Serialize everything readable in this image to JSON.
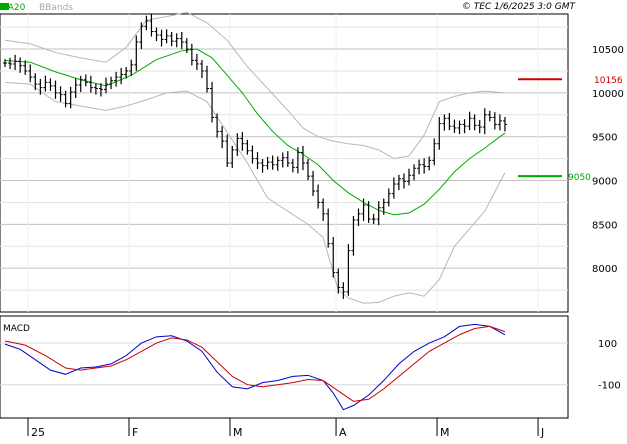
{
  "header": {
    "ma_label": "MA20",
    "bb_label": "BBands",
    "copyright": "© TEC 1/6/2025 3:0 GMT"
  },
  "macd_label": "MACD",
  "colors": {
    "background": "#ffffff",
    "grid": "#c0c0c0",
    "price_bars": "#000000",
    "ma20": "#00aa00",
    "bbands": "#b8b8b8",
    "resistance": "#cc0000",
    "support": "#00aa00",
    "macd_line": "#0000cc",
    "signal_line": "#cc0000"
  },
  "chart_data": [
    {
      "type": "ohlc",
      "title": "",
      "x_labels": [
        "25",
        "F",
        "M",
        "A",
        "M",
        "J"
      ],
      "x_label_days": [
        0,
        20,
        40,
        61,
        81,
        101
      ],
      "ylim": [
        7500,
        10900
      ],
      "y_ticks": [
        8000,
        8500,
        9000,
        9500,
        10000,
        10500
      ],
      "y_tick_labels": [
        "8000",
        "8500",
        "9000",
        "9500",
        "10000",
        "10500"
      ],
      "levels": [
        {
          "name": "resistance",
          "value": 10156,
          "label": "10156"
        },
        {
          "name": "support",
          "value": 9050,
          "label": "9050"
        }
      ],
      "series": [
        {
          "name": "Price",
          "points": [
            [
              0,
              10340
            ],
            [
              1,
              10330
            ],
            [
              2,
              10360
            ],
            [
              3,
              10310
            ],
            [
              4,
              10250
            ],
            [
              5,
              10180
            ],
            [
              6,
              10100
            ],
            [
              7,
              10060
            ],
            [
              8,
              10120
            ],
            [
              9,
              10080
            ],
            [
              10,
              10000
            ],
            [
              11,
              9980
            ],
            [
              12,
              9880
            ],
            [
              13,
              10010
            ],
            [
              14,
              10090
            ],
            [
              15,
              10150
            ],
            [
              16,
              10120
            ],
            [
              17,
              10060
            ],
            [
              18,
              10050
            ],
            [
              19,
              10040
            ],
            [
              20,
              10100
            ],
            [
              21,
              10140
            ],
            [
              22,
              10180
            ],
            [
              23,
              10210
            ],
            [
              24,
              10250
            ],
            [
              25,
              10320
            ],
            [
              26,
              10580
            ],
            [
              27,
              10760
            ],
            [
              28,
              10820
            ],
            [
              29,
              10700
            ],
            [
              30,
              10660
            ],
            [
              31,
              10610
            ],
            [
              32,
              10650
            ],
            [
              33,
              10590
            ],
            [
              34,
              10620
            ],
            [
              35,
              10580
            ],
            [
              36,
              10500
            ],
            [
              37,
              10370
            ],
            [
              38,
              10330
            ],
            [
              39,
              10250
            ],
            [
              40,
              10050
            ],
            [
              41,
              9720
            ],
            [
              42,
              9560
            ],
            [
              43,
              9450
            ],
            [
              44,
              9200
            ],
            [
              45,
              9350
            ],
            [
              46,
              9480
            ],
            [
              47,
              9420
            ],
            [
              48,
              9340
            ],
            [
              49,
              9250
            ],
            [
              50,
              9200
            ],
            [
              51,
              9170
            ],
            [
              52,
              9210
            ],
            [
              53,
              9180
            ],
            [
              54,
              9230
            ],
            [
              55,
              9260
            ],
            [
              56,
              9200
            ],
            [
              57,
              9150
            ],
            [
              58,
              9320
            ],
            [
              59,
              9200
            ],
            [
              60,
              9050
            ],
            [
              61,
              8880
            ],
            [
              62,
              8750
            ],
            [
              63,
              8620
            ],
            [
              64,
              8280
            ],
            [
              65,
              7950
            ],
            [
              66,
              7780
            ],
            [
              67,
              7730
            ],
            [
              68,
              8200
            ],
            [
              69,
              8550
            ],
            [
              70,
              8620
            ],
            [
              71,
              8720
            ],
            [
              72,
              8560
            ],
            [
              73,
              8560
            ],
            [
              74,
              8690
            ],
            [
              75,
              8750
            ],
            [
              76,
              8850
            ],
            [
              77,
              8960
            ],
            [
              78,
              9020
            ],
            [
              79,
              8990
            ],
            [
              80,
              9060
            ],
            [
              81,
              9140
            ],
            [
              82,
              9180
            ],
            [
              83,
              9160
            ],
            [
              84,
              9230
            ],
            [
              85,
              9420
            ],
            [
              86,
              9650
            ],
            [
              87,
              9710
            ],
            [
              88,
              9620
            ],
            [
              89,
              9600
            ],
            [
              90,
              9640
            ],
            [
              91,
              9620
            ],
            [
              92,
              9710
            ],
            [
              93,
              9630
            ],
            [
              94,
              9610
            ],
            [
              95,
              9750
            ],
            [
              96,
              9720
            ],
            [
              97,
              9640
            ],
            [
              98,
              9680
            ],
            [
              99,
              9640
            ]
          ]
        },
        {
          "name": "MA20",
          "points": [
            [
              0,
              10370
            ],
            [
              5,
              10350
            ],
            [
              10,
              10240
            ],
            [
              15,
              10150
            ],
            [
              20,
              10080
            ],
            [
              25,
              10200
            ],
            [
              30,
              10380
            ],
            [
              35,
              10480
            ],
            [
              38,
              10500
            ],
            [
              41,
              10400
            ],
            [
              44,
              10200
            ],
            [
              47,
              10000
            ],
            [
              50,
              9760
            ],
            [
              53,
              9560
            ],
            [
              56,
              9400
            ],
            [
              59,
              9300
            ],
            [
              62,
              9180
            ],
            [
              65,
              9000
            ],
            [
              68,
              8860
            ],
            [
              71,
              8750
            ],
            [
              74,
              8660
            ],
            [
              77,
              8610
            ],
            [
              80,
              8630
            ],
            [
              83,
              8730
            ],
            [
              86,
              8900
            ],
            [
              89,
              9100
            ],
            [
              92,
              9250
            ],
            [
              95,
              9370
            ],
            [
              98,
              9500
            ],
            [
              99,
              9540
            ]
          ]
        },
        {
          "name": "BB Upper",
          "points": [
            [
              0,
              10600
            ],
            [
              5,
              10560
            ],
            [
              10,
              10460
            ],
            [
              15,
              10400
            ],
            [
              20,
              10350
            ],
            [
              24,
              10520
            ],
            [
              28,
              10830
            ],
            [
              32,
              10870
            ],
            [
              36,
              10920
            ],
            [
              40,
              10800
            ],
            [
              44,
              10600
            ],
            [
              48,
              10300
            ],
            [
              52,
              10050
            ],
            [
              56,
              9800
            ],
            [
              59,
              9600
            ],
            [
              62,
              9500
            ],
            [
              65,
              9450
            ],
            [
              68,
              9420
            ],
            [
              71,
              9400
            ],
            [
              74,
              9350
            ],
            [
              77,
              9250
            ],
            [
              80,
              9280
            ],
            [
              83,
              9520
            ],
            [
              86,
              9900
            ],
            [
              89,
              9960
            ],
            [
              92,
              10000
            ],
            [
              95,
              10020
            ],
            [
              99,
              10000
            ]
          ]
        },
        {
          "name": "BB Lower",
          "points": [
            [
              0,
              10120
            ],
            [
              5,
              10100
            ],
            [
              10,
              9900
            ],
            [
              15,
              9850
            ],
            [
              20,
              9800
            ],
            [
              24,
              9850
            ],
            [
              28,
              9920
            ],
            [
              32,
              10000
            ],
            [
              36,
              10020
            ],
            [
              40,
              9900
            ],
            [
              44,
              9550
            ],
            [
              48,
              9200
            ],
            [
              52,
              8800
            ],
            [
              56,
              8650
            ],
            [
              60,
              8500
            ],
            [
              63,
              8350
            ],
            [
              66,
              7750
            ],
            [
              68,
              7660
            ],
            [
              71,
              7600
            ],
            [
              74,
              7610
            ],
            [
              77,
              7680
            ],
            [
              80,
              7720
            ],
            [
              83,
              7680
            ],
            [
              86,
              7870
            ],
            [
              89,
              8250
            ],
            [
              92,
              8450
            ],
            [
              95,
              8650
            ],
            [
              99,
              9090
            ]
          ]
        }
      ]
    },
    {
      "type": "line",
      "title": "MACD",
      "ylim": [
        -260,
        230
      ],
      "y_ticks": [
        100,
        -100
      ],
      "y_tick_labels": [
        "100",
        "-100"
      ],
      "series": [
        {
          "name": "MACD",
          "points": [
            [
              0,
              95
            ],
            [
              3,
              70
            ],
            [
              6,
              20
            ],
            [
              9,
              -30
            ],
            [
              12,
              -50
            ],
            [
              15,
              -20
            ],
            [
              18,
              -15
            ],
            [
              21,
              0
            ],
            [
              24,
              40
            ],
            [
              27,
              100
            ],
            [
              30,
              130
            ],
            [
              33,
              135
            ],
            [
              36,
              110
            ],
            [
              39,
              60
            ],
            [
              42,
              -40
            ],
            [
              45,
              -110
            ],
            [
              48,
              -120
            ],
            [
              51,
              -90
            ],
            [
              54,
              -80
            ],
            [
              57,
              -60
            ],
            [
              60,
              -55
            ],
            [
              63,
              -80
            ],
            [
              65,
              -140
            ],
            [
              67,
              -220
            ],
            [
              69,
              -200
            ],
            [
              72,
              -150
            ],
            [
              75,
              -80
            ],
            [
              78,
              0
            ],
            [
              81,
              60
            ],
            [
              84,
              100
            ],
            [
              87,
              130
            ],
            [
              90,
              180
            ],
            [
              93,
              190
            ],
            [
              96,
              180
            ],
            [
              99,
              140
            ]
          ]
        },
        {
          "name": "Signal",
          "points": [
            [
              0,
              110
            ],
            [
              4,
              90
            ],
            [
              8,
              40
            ],
            [
              12,
              -20
            ],
            [
              15,
              -30
            ],
            [
              18,
              -20
            ],
            [
              21,
              -10
            ],
            [
              24,
              20
            ],
            [
              27,
              60
            ],
            [
              30,
              100
            ],
            [
              33,
              125
            ],
            [
              36,
              115
            ],
            [
              39,
              80
            ],
            [
              42,
              10
            ],
            [
              45,
              -60
            ],
            [
              48,
              -100
            ],
            [
              51,
              -110
            ],
            [
              54,
              -100
            ],
            [
              57,
              -90
            ],
            [
              60,
              -75
            ],
            [
              63,
              -80
            ],
            [
              66,
              -130
            ],
            [
              69,
              -180
            ],
            [
              72,
              -170
            ],
            [
              75,
              -120
            ],
            [
              78,
              -60
            ],
            [
              81,
              0
            ],
            [
              84,
              60
            ],
            [
              87,
              100
            ],
            [
              90,
              140
            ],
            [
              93,
              170
            ],
            [
              96,
              180
            ],
            [
              99,
              155
            ]
          ]
        }
      ]
    }
  ]
}
